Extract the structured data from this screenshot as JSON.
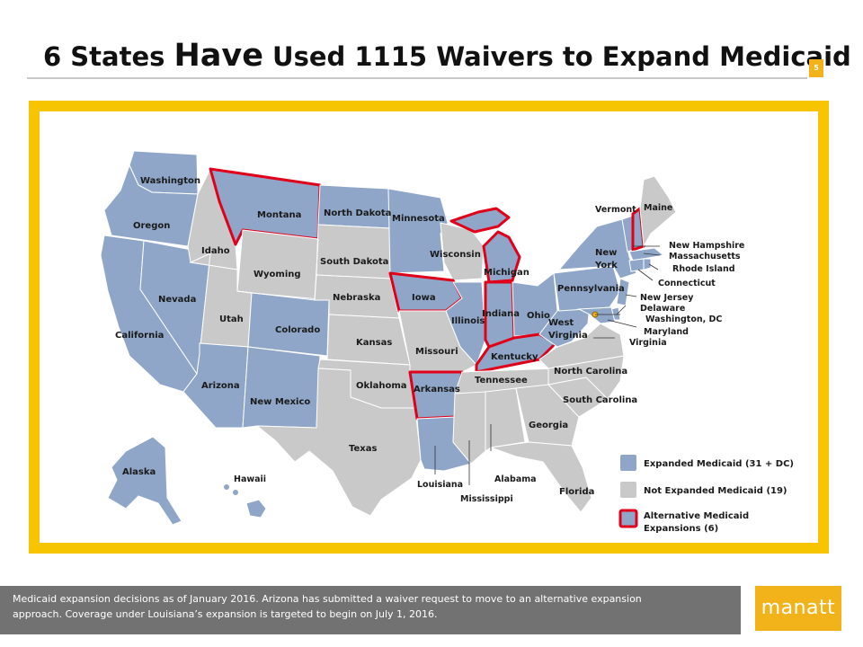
{
  "slide": {
    "title_part1": "6 States ",
    "title_emph": "Have",
    "title_part2": " Used 1115 Waivers to Expand Medicaid",
    "page_number": "5",
    "brand": "manatt"
  },
  "colors": {
    "expanded": "#8fa6c9",
    "not_expanded": "#c9c9c9",
    "alternative_border": "#e0001a",
    "frame": "#f7c400",
    "accent": "#f2b31a",
    "footer": "#727272"
  },
  "map": {
    "state_labels": {
      "washington": "Washington",
      "oregon": "Oregon",
      "california": "California",
      "nevada": "Nevada",
      "idaho": "Idaho",
      "montana": "Montana",
      "wyoming": "Wyoming",
      "utah": "Utah",
      "colorado": "Colorado",
      "arizona": "Arizona",
      "new_mexico": "New Mexico",
      "north_dakota": "North Dakota",
      "south_dakota": "South Dakota",
      "nebraska": "Nebraska",
      "kansas": "Kansas",
      "oklahoma": "Oklahoma",
      "texas": "Texas",
      "minnesota": "Minnesota",
      "iowa": "Iowa",
      "missouri": "Missouri",
      "arkansas": "Arkansas",
      "louisiana": "Louisiana",
      "wisconsin": "Wisconsin",
      "illinois": "Illinois",
      "michigan": "Michigan",
      "indiana": "Indiana",
      "ohio": "Ohio",
      "kentucky": "Kentucky",
      "tennessee": "Tennessee",
      "mississippi": "Mississippi",
      "alabama": "Alabama",
      "georgia": "Georgia",
      "florida": "Florida",
      "south_carolina": "South Carolina",
      "north_carolina": "North Carolina",
      "virginia": "Virginia",
      "west_virginia": "West Virginia",
      "pennsylvania": "Pennsylvania",
      "new_york": "New York",
      "vermont": "Vermont",
      "maine": "Maine",
      "new_hampshire": "New Hampshire",
      "massachusetts": "Massachusetts",
      "rhode_island": "Rhode Island",
      "connecticut": "Connecticut",
      "new_jersey": "New Jersey",
      "delaware": "Delaware",
      "washington_dc": "Washington, DC",
      "maryland": "Maryland",
      "alaska": "Alaska",
      "hawaii": "Hawaii"
    },
    "legend": {
      "expanded": "Expanded Medicaid  (31 + DC)",
      "not_expanded": "Not Expanded Medicaid  (19)",
      "alternative_line1": "Alternative Medicaid",
      "alternative_line2": "Expansions  (6)"
    }
  },
  "footer": {
    "note_line1": "Medicaid expansion decisions as of January 2016.  Arizona has submitted a waiver request to move to an alternative expansion",
    "note_line2": "approach. Coverage under Louisiana’s expansion is targeted to begin on July 1, 2016."
  }
}
